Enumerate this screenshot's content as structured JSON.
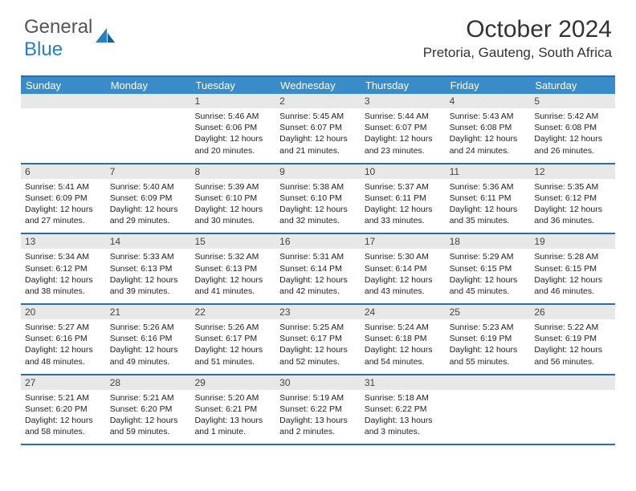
{
  "brand": {
    "part1": "General",
    "part2": "Blue"
  },
  "title": "October 2024",
  "location": "Pretoria, Gauteng, South Africa",
  "colors": {
    "header_bg": "#3a8cc9",
    "divider": "#2a6fa8",
    "daynum_bg": "#e8e8e8",
    "brand_gray": "#555555",
    "brand_blue": "#2a7fbf"
  },
  "weekdays": [
    "Sunday",
    "Monday",
    "Tuesday",
    "Wednesday",
    "Thursday",
    "Friday",
    "Saturday"
  ],
  "weeks": [
    [
      {
        "n": "",
        "sunrise": "",
        "sunset": "",
        "day": ""
      },
      {
        "n": "",
        "sunrise": "",
        "sunset": "",
        "day": ""
      },
      {
        "n": "1",
        "sunrise": "Sunrise: 5:46 AM",
        "sunset": "Sunset: 6:06 PM",
        "day": "Daylight: 12 hours and 20 minutes."
      },
      {
        "n": "2",
        "sunrise": "Sunrise: 5:45 AM",
        "sunset": "Sunset: 6:07 PM",
        "day": "Daylight: 12 hours and 21 minutes."
      },
      {
        "n": "3",
        "sunrise": "Sunrise: 5:44 AM",
        "sunset": "Sunset: 6:07 PM",
        "day": "Daylight: 12 hours and 23 minutes."
      },
      {
        "n": "4",
        "sunrise": "Sunrise: 5:43 AM",
        "sunset": "Sunset: 6:08 PM",
        "day": "Daylight: 12 hours and 24 minutes."
      },
      {
        "n": "5",
        "sunrise": "Sunrise: 5:42 AM",
        "sunset": "Sunset: 6:08 PM",
        "day": "Daylight: 12 hours and 26 minutes."
      }
    ],
    [
      {
        "n": "6",
        "sunrise": "Sunrise: 5:41 AM",
        "sunset": "Sunset: 6:09 PM",
        "day": "Daylight: 12 hours and 27 minutes."
      },
      {
        "n": "7",
        "sunrise": "Sunrise: 5:40 AM",
        "sunset": "Sunset: 6:09 PM",
        "day": "Daylight: 12 hours and 29 minutes."
      },
      {
        "n": "8",
        "sunrise": "Sunrise: 5:39 AM",
        "sunset": "Sunset: 6:10 PM",
        "day": "Daylight: 12 hours and 30 minutes."
      },
      {
        "n": "9",
        "sunrise": "Sunrise: 5:38 AM",
        "sunset": "Sunset: 6:10 PM",
        "day": "Daylight: 12 hours and 32 minutes."
      },
      {
        "n": "10",
        "sunrise": "Sunrise: 5:37 AM",
        "sunset": "Sunset: 6:11 PM",
        "day": "Daylight: 12 hours and 33 minutes."
      },
      {
        "n": "11",
        "sunrise": "Sunrise: 5:36 AM",
        "sunset": "Sunset: 6:11 PM",
        "day": "Daylight: 12 hours and 35 minutes."
      },
      {
        "n": "12",
        "sunrise": "Sunrise: 5:35 AM",
        "sunset": "Sunset: 6:12 PM",
        "day": "Daylight: 12 hours and 36 minutes."
      }
    ],
    [
      {
        "n": "13",
        "sunrise": "Sunrise: 5:34 AM",
        "sunset": "Sunset: 6:12 PM",
        "day": "Daylight: 12 hours and 38 minutes."
      },
      {
        "n": "14",
        "sunrise": "Sunrise: 5:33 AM",
        "sunset": "Sunset: 6:13 PM",
        "day": "Daylight: 12 hours and 39 minutes."
      },
      {
        "n": "15",
        "sunrise": "Sunrise: 5:32 AM",
        "sunset": "Sunset: 6:13 PM",
        "day": "Daylight: 12 hours and 41 minutes."
      },
      {
        "n": "16",
        "sunrise": "Sunrise: 5:31 AM",
        "sunset": "Sunset: 6:14 PM",
        "day": "Daylight: 12 hours and 42 minutes."
      },
      {
        "n": "17",
        "sunrise": "Sunrise: 5:30 AM",
        "sunset": "Sunset: 6:14 PM",
        "day": "Daylight: 12 hours and 43 minutes."
      },
      {
        "n": "18",
        "sunrise": "Sunrise: 5:29 AM",
        "sunset": "Sunset: 6:15 PM",
        "day": "Daylight: 12 hours and 45 minutes."
      },
      {
        "n": "19",
        "sunrise": "Sunrise: 5:28 AM",
        "sunset": "Sunset: 6:15 PM",
        "day": "Daylight: 12 hours and 46 minutes."
      }
    ],
    [
      {
        "n": "20",
        "sunrise": "Sunrise: 5:27 AM",
        "sunset": "Sunset: 6:16 PM",
        "day": "Daylight: 12 hours and 48 minutes."
      },
      {
        "n": "21",
        "sunrise": "Sunrise: 5:26 AM",
        "sunset": "Sunset: 6:16 PM",
        "day": "Daylight: 12 hours and 49 minutes."
      },
      {
        "n": "22",
        "sunrise": "Sunrise: 5:26 AM",
        "sunset": "Sunset: 6:17 PM",
        "day": "Daylight: 12 hours and 51 minutes."
      },
      {
        "n": "23",
        "sunrise": "Sunrise: 5:25 AM",
        "sunset": "Sunset: 6:17 PM",
        "day": "Daylight: 12 hours and 52 minutes."
      },
      {
        "n": "24",
        "sunrise": "Sunrise: 5:24 AM",
        "sunset": "Sunset: 6:18 PM",
        "day": "Daylight: 12 hours and 54 minutes."
      },
      {
        "n": "25",
        "sunrise": "Sunrise: 5:23 AM",
        "sunset": "Sunset: 6:19 PM",
        "day": "Daylight: 12 hours and 55 minutes."
      },
      {
        "n": "26",
        "sunrise": "Sunrise: 5:22 AM",
        "sunset": "Sunset: 6:19 PM",
        "day": "Daylight: 12 hours and 56 minutes."
      }
    ],
    [
      {
        "n": "27",
        "sunrise": "Sunrise: 5:21 AM",
        "sunset": "Sunset: 6:20 PM",
        "day": "Daylight: 12 hours and 58 minutes."
      },
      {
        "n": "28",
        "sunrise": "Sunrise: 5:21 AM",
        "sunset": "Sunset: 6:20 PM",
        "day": "Daylight: 12 hours and 59 minutes."
      },
      {
        "n": "29",
        "sunrise": "Sunrise: 5:20 AM",
        "sunset": "Sunset: 6:21 PM",
        "day": "Daylight: 13 hours and 1 minute."
      },
      {
        "n": "30",
        "sunrise": "Sunrise: 5:19 AM",
        "sunset": "Sunset: 6:22 PM",
        "day": "Daylight: 13 hours and 2 minutes."
      },
      {
        "n": "31",
        "sunrise": "Sunrise: 5:18 AM",
        "sunset": "Sunset: 6:22 PM",
        "day": "Daylight: 13 hours and 3 minutes."
      },
      {
        "n": "",
        "sunrise": "",
        "sunset": "",
        "day": ""
      },
      {
        "n": "",
        "sunrise": "",
        "sunset": "",
        "day": ""
      }
    ]
  ]
}
